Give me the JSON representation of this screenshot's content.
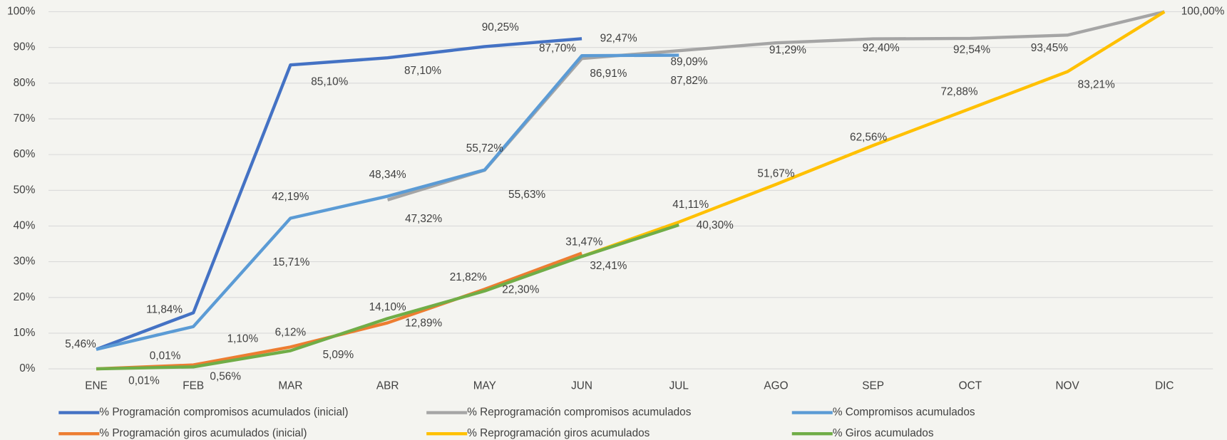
{
  "chart_data": {
    "type": "line",
    "categories": [
      "ENE",
      "FEB",
      "MAR",
      "ABR",
      "MAY",
      "JUN",
      "JUL",
      "AGO",
      "SEP",
      "OCT",
      "NOV",
      "DIC"
    ],
    "ylim": [
      0,
      100
    ],
    "yticks": [
      {
        "value": 0,
        "label": "0%"
      },
      {
        "value": 10,
        "label": "10%"
      },
      {
        "value": 20,
        "label": "20%"
      },
      {
        "value": 30,
        "label": "30%"
      },
      {
        "value": 40,
        "label": "40%"
      },
      {
        "value": 50,
        "label": "50%"
      },
      {
        "value": 60,
        "label": "60%"
      },
      {
        "value": 70,
        "label": "70%"
      },
      {
        "value": 80,
        "label": "80%"
      },
      {
        "value": 90,
        "label": "90%"
      },
      {
        "value": 100,
        "label": "100%"
      }
    ],
    "grid": true,
    "legend": "bottom",
    "series": [
      {
        "name": "% Programación compromisos acumulados (inicial)",
        "color": "#4472c4",
        "values": [
          5.46,
          15.71,
          85.1,
          87.1,
          90.25,
          92.47,
          null,
          null,
          null,
          null,
          null,
          null
        ],
        "value_labels": [
          "5,46%",
          "15,71%",
          "85,10%",
          "87,10%",
          "90,25%",
          "92,47%",
          null,
          null,
          null,
          null,
          null,
          null
        ]
      },
      {
        "name": "% Reprogramación compromisos acumulados",
        "color": "#a5a5a5",
        "values": [
          null,
          null,
          null,
          47.32,
          55.63,
          86.91,
          89.09,
          91.29,
          92.4,
          92.54,
          93.45,
          100
        ],
        "value_labels": [
          null,
          null,
          null,
          "47,32%",
          "55,63%",
          "86,91%",
          "89,09%",
          "91,29%",
          "92,40%",
          "92,54%",
          "93,45%",
          "100,00%"
        ]
      },
      {
        "name": "% Compromisos acumulados",
        "color": "#5b9bd5",
        "values": [
          5.46,
          11.84,
          42.19,
          48.34,
          55.72,
          87.7,
          87.82,
          null,
          null,
          null,
          null,
          null
        ],
        "value_labels": [
          null,
          "11,84%",
          "42,19%",
          "48,34%",
          "55,72%",
          "87,70%",
          "87,82%",
          null,
          null,
          null,
          null,
          null
        ]
      },
      {
        "name": "% Programación giros acumulados (inicial)",
        "color": "#ed7d31",
        "values": [
          0.01,
          1.1,
          6.12,
          12.89,
          22.3,
          32.41,
          null,
          null,
          null,
          null,
          null,
          null
        ],
        "value_labels": [
          "0,01%",
          "1,10%",
          "6,12%",
          "12,89%",
          "22,30%",
          "32,41%",
          null,
          null,
          null,
          null,
          null,
          null
        ]
      },
      {
        "name": "% Reprogramación giros acumulados",
        "color": "#ffc000",
        "values": [
          null,
          null,
          null,
          null,
          null,
          31.47,
          41.11,
          51.67,
          62.56,
          72.88,
          83.21,
          100
        ],
        "value_labels": [
          null,
          null,
          null,
          null,
          null,
          null,
          "41,11%",
          "51,67%",
          "62,56%",
          "72,88%",
          "83,21%",
          null
        ]
      },
      {
        "name": "% Giros acumulados",
        "color": "#70ad47",
        "values": [
          0.01,
          0.56,
          5.09,
          14.1,
          21.82,
          31.47,
          40.3,
          null,
          null,
          null,
          null,
          null
        ],
        "value_labels": [
          "0,01%",
          "0,56%",
          "5,09%",
          "14,10%",
          "21,82%",
          "31,47%",
          "40,30%",
          null,
          null,
          null,
          null,
          null
        ]
      }
    ]
  }
}
